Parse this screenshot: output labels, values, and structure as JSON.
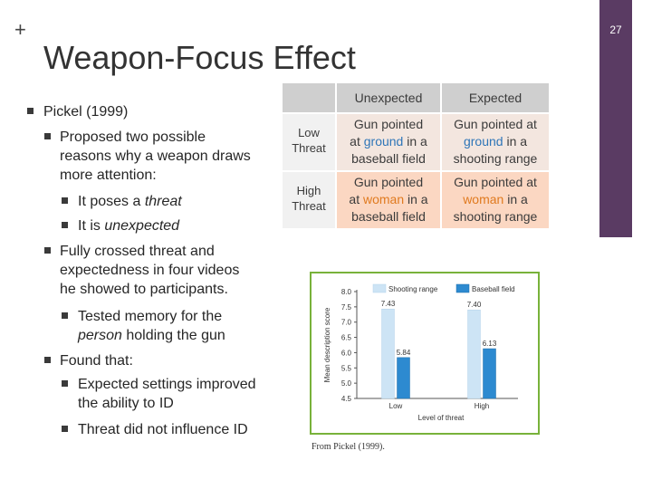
{
  "slide": {
    "plus_symbol": "+",
    "page_number": "27",
    "title": "Weapon-Focus Effect"
  },
  "bullets": {
    "l1_pickel": "Pickel (1999)",
    "l2_proposed": [
      "Proposed two possible",
      "reasons why a weapon draws",
      "more attention:"
    ],
    "l3_threat_pre": "It poses a ",
    "l3_threat_em": "threat",
    "l3_unexpected_pre": "It is ",
    "l3_unexpected_em": "unexpected",
    "l2_crossed": [
      "Fully crossed threat and",
      "expectedness in four videos",
      "he showed to participants."
    ],
    "l3_tested_line1": "Tested memory for the",
    "l3_tested_em": "person",
    "l3_tested_rest": " holding the gun",
    "l2_found": "Found that:",
    "l3_expected": [
      "Expected settings improved",
      "the ability to ID"
    ],
    "l3_threat_did_not": "Threat did not influence ID"
  },
  "table": {
    "col_unexpected": "Unexpected",
    "col_expected": "Expected",
    "row_low": [
      "Low",
      "Threat"
    ],
    "row_high": [
      "High",
      "Threat"
    ],
    "low_unexpected": {
      "pre": "Gun pointed",
      "mid_pre": "at ",
      "hl": "ground",
      "mid_post": " in a",
      "post": "baseball field"
    },
    "low_expected": {
      "pre": "Gun pointed at",
      "hl": "ground",
      "mid_post": " in a",
      "post": "shooting range"
    },
    "high_unexpected": {
      "pre": "Gun pointed",
      "mid_pre": "at ",
      "hl": "woman",
      "mid_post": " in a",
      "post": "baseball field"
    },
    "high_expected": {
      "pre": "Gun pointed at",
      "hl": "woman",
      "mid_post": " in a",
      "post": "shooting range"
    },
    "colors": {
      "highlight_low": "#2f76b8",
      "highlight_high": "#e07a1f"
    }
  },
  "chart_data": {
    "type": "bar",
    "categories": [
      "Low",
      "High"
    ],
    "series": [
      {
        "name": "Shooting range",
        "values": [
          7.43,
          7.4
        ],
        "color": "#cde4f5"
      },
      {
        "name": "Baseball field",
        "values": [
          5.84,
          6.13
        ],
        "color": "#2d8ad0"
      }
    ],
    "value_labels": [
      [
        "7.43",
        "5.84"
      ],
      [
        "7.40",
        "6.13"
      ]
    ],
    "xlabel": "Level of threat",
    "ylabel": "Mean description score",
    "ylim": [
      4.5,
      8.0
    ],
    "yticks": [
      "4.5",
      "5.0",
      "5.5",
      "6.0",
      "6.5",
      "7.0",
      "7.5",
      "8.0"
    ],
    "legend_position": "top",
    "grid": false,
    "frame_color": "#78b23a"
  },
  "caption": "From Pickel (1999)."
}
